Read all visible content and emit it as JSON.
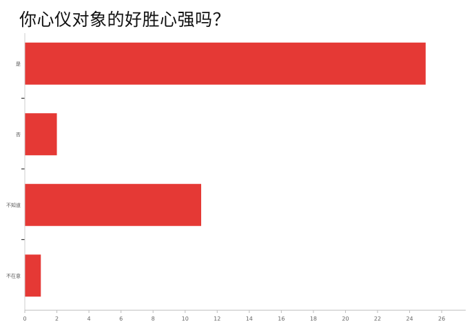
{
  "chart_data": {
    "type": "bar",
    "orientation": "horizontal",
    "title": "你心仪对象的好胜心强吗？",
    "categories": [
      "是",
      "否",
      "不知道",
      "不在意"
    ],
    "values": [
      25,
      2,
      11,
      1
    ],
    "xlim": [
      0,
      27.5
    ],
    "xticks": [
      0,
      2,
      4,
      6,
      8,
      10,
      12,
      14,
      16,
      18,
      20,
      22,
      24,
      26
    ],
    "xlabel": "",
    "ylabel": "",
    "grid": false,
    "legend": "none",
    "bar_color": "#e53935"
  }
}
